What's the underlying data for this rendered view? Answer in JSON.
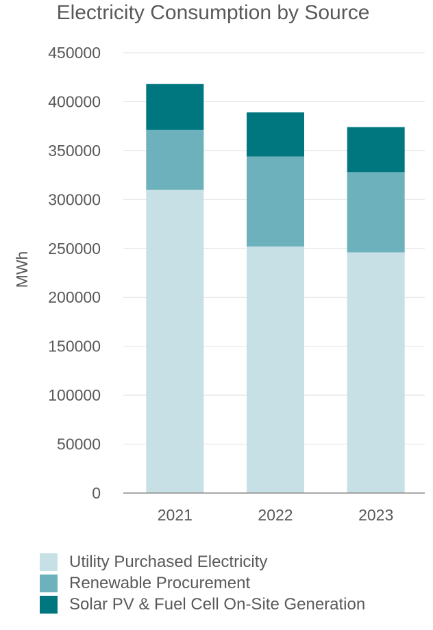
{
  "chart_data": {
    "type": "bar",
    "stacked": true,
    "title": "Electricity Consumption by Source",
    "xlabel": "",
    "ylabel": "MWh",
    "ylim": [
      0,
      450000
    ],
    "yticks": [
      0,
      50000,
      100000,
      150000,
      200000,
      250000,
      300000,
      350000,
      400000,
      450000
    ],
    "grid": true,
    "legend_position": "bottom",
    "categories": [
      "2021",
      "2022",
      "2023"
    ],
    "series": [
      {
        "name": "Utility Purchased Electricity",
        "color": "#c6e0e5",
        "values": [
          310000,
          252000,
          246000
        ]
      },
      {
        "name": "Renewable Procurement",
        "color": "#6cb1bb",
        "values": [
          61000,
          92000,
          82000
        ]
      },
      {
        "name": "Solar PV & Fuel Cell On-Site Generation",
        "color": "#00777f",
        "values": [
          47000,
          45000,
          46000
        ]
      }
    ]
  }
}
